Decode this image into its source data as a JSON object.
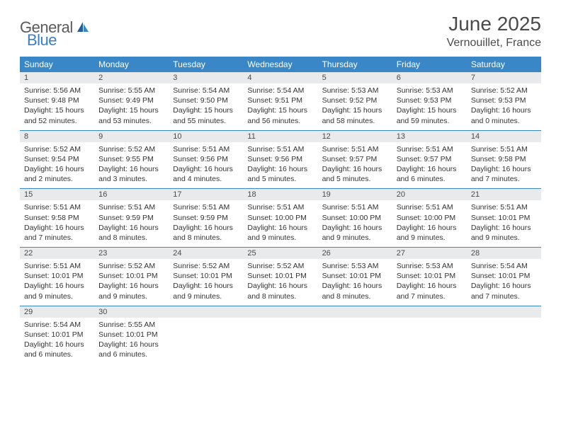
{
  "logo": {
    "part1": "General",
    "part2": "Blue"
  },
  "title": "June 2025",
  "location": "Vernouillet, France",
  "colors": {
    "header_bg": "#3a87c7",
    "header_text": "#ffffff",
    "daynum_bg": "#e9eaeb",
    "border": "#3a87c7",
    "body_text": "#333333",
    "title_text": "#4a4a4a",
    "logo_gray": "#5a5a5a",
    "logo_blue": "#3a7fc4"
  },
  "day_headers": [
    "Sunday",
    "Monday",
    "Tuesday",
    "Wednesday",
    "Thursday",
    "Friday",
    "Saturday"
  ],
  "weeks": [
    [
      {
        "n": "1",
        "sr": "Sunrise: 5:56 AM",
        "ss": "Sunset: 9:48 PM",
        "dl": "Daylight: 15 hours and 52 minutes."
      },
      {
        "n": "2",
        "sr": "Sunrise: 5:55 AM",
        "ss": "Sunset: 9:49 PM",
        "dl": "Daylight: 15 hours and 53 minutes."
      },
      {
        "n": "3",
        "sr": "Sunrise: 5:54 AM",
        "ss": "Sunset: 9:50 PM",
        "dl": "Daylight: 15 hours and 55 minutes."
      },
      {
        "n": "4",
        "sr": "Sunrise: 5:54 AM",
        "ss": "Sunset: 9:51 PM",
        "dl": "Daylight: 15 hours and 56 minutes."
      },
      {
        "n": "5",
        "sr": "Sunrise: 5:53 AM",
        "ss": "Sunset: 9:52 PM",
        "dl": "Daylight: 15 hours and 58 minutes."
      },
      {
        "n": "6",
        "sr": "Sunrise: 5:53 AM",
        "ss": "Sunset: 9:53 PM",
        "dl": "Daylight: 15 hours and 59 minutes."
      },
      {
        "n": "7",
        "sr": "Sunrise: 5:52 AM",
        "ss": "Sunset: 9:53 PM",
        "dl": "Daylight: 16 hours and 0 minutes."
      }
    ],
    [
      {
        "n": "8",
        "sr": "Sunrise: 5:52 AM",
        "ss": "Sunset: 9:54 PM",
        "dl": "Daylight: 16 hours and 2 minutes."
      },
      {
        "n": "9",
        "sr": "Sunrise: 5:52 AM",
        "ss": "Sunset: 9:55 PM",
        "dl": "Daylight: 16 hours and 3 minutes."
      },
      {
        "n": "10",
        "sr": "Sunrise: 5:51 AM",
        "ss": "Sunset: 9:56 PM",
        "dl": "Daylight: 16 hours and 4 minutes."
      },
      {
        "n": "11",
        "sr": "Sunrise: 5:51 AM",
        "ss": "Sunset: 9:56 PM",
        "dl": "Daylight: 16 hours and 5 minutes."
      },
      {
        "n": "12",
        "sr": "Sunrise: 5:51 AM",
        "ss": "Sunset: 9:57 PM",
        "dl": "Daylight: 16 hours and 5 minutes."
      },
      {
        "n": "13",
        "sr": "Sunrise: 5:51 AM",
        "ss": "Sunset: 9:57 PM",
        "dl": "Daylight: 16 hours and 6 minutes."
      },
      {
        "n": "14",
        "sr": "Sunrise: 5:51 AM",
        "ss": "Sunset: 9:58 PM",
        "dl": "Daylight: 16 hours and 7 minutes."
      }
    ],
    [
      {
        "n": "15",
        "sr": "Sunrise: 5:51 AM",
        "ss": "Sunset: 9:58 PM",
        "dl": "Daylight: 16 hours and 7 minutes."
      },
      {
        "n": "16",
        "sr": "Sunrise: 5:51 AM",
        "ss": "Sunset: 9:59 PM",
        "dl": "Daylight: 16 hours and 8 minutes."
      },
      {
        "n": "17",
        "sr": "Sunrise: 5:51 AM",
        "ss": "Sunset: 9:59 PM",
        "dl": "Daylight: 16 hours and 8 minutes."
      },
      {
        "n": "18",
        "sr": "Sunrise: 5:51 AM",
        "ss": "Sunset: 10:00 PM",
        "dl": "Daylight: 16 hours and 9 minutes."
      },
      {
        "n": "19",
        "sr": "Sunrise: 5:51 AM",
        "ss": "Sunset: 10:00 PM",
        "dl": "Daylight: 16 hours and 9 minutes."
      },
      {
        "n": "20",
        "sr": "Sunrise: 5:51 AM",
        "ss": "Sunset: 10:00 PM",
        "dl": "Daylight: 16 hours and 9 minutes."
      },
      {
        "n": "21",
        "sr": "Sunrise: 5:51 AM",
        "ss": "Sunset: 10:01 PM",
        "dl": "Daylight: 16 hours and 9 minutes."
      }
    ],
    [
      {
        "n": "22",
        "sr": "Sunrise: 5:51 AM",
        "ss": "Sunset: 10:01 PM",
        "dl": "Daylight: 16 hours and 9 minutes."
      },
      {
        "n": "23",
        "sr": "Sunrise: 5:52 AM",
        "ss": "Sunset: 10:01 PM",
        "dl": "Daylight: 16 hours and 9 minutes."
      },
      {
        "n": "24",
        "sr": "Sunrise: 5:52 AM",
        "ss": "Sunset: 10:01 PM",
        "dl": "Daylight: 16 hours and 9 minutes."
      },
      {
        "n": "25",
        "sr": "Sunrise: 5:52 AM",
        "ss": "Sunset: 10:01 PM",
        "dl": "Daylight: 16 hours and 8 minutes."
      },
      {
        "n": "26",
        "sr": "Sunrise: 5:53 AM",
        "ss": "Sunset: 10:01 PM",
        "dl": "Daylight: 16 hours and 8 minutes."
      },
      {
        "n": "27",
        "sr": "Sunrise: 5:53 AM",
        "ss": "Sunset: 10:01 PM",
        "dl": "Daylight: 16 hours and 7 minutes."
      },
      {
        "n": "28",
        "sr": "Sunrise: 5:54 AM",
        "ss": "Sunset: 10:01 PM",
        "dl": "Daylight: 16 hours and 7 minutes."
      }
    ],
    [
      {
        "n": "29",
        "sr": "Sunrise: 5:54 AM",
        "ss": "Sunset: 10:01 PM",
        "dl": "Daylight: 16 hours and 6 minutes."
      },
      {
        "n": "30",
        "sr": "Sunrise: 5:55 AM",
        "ss": "Sunset: 10:01 PM",
        "dl": "Daylight: 16 hours and 6 minutes."
      },
      null,
      null,
      null,
      null,
      null
    ]
  ]
}
